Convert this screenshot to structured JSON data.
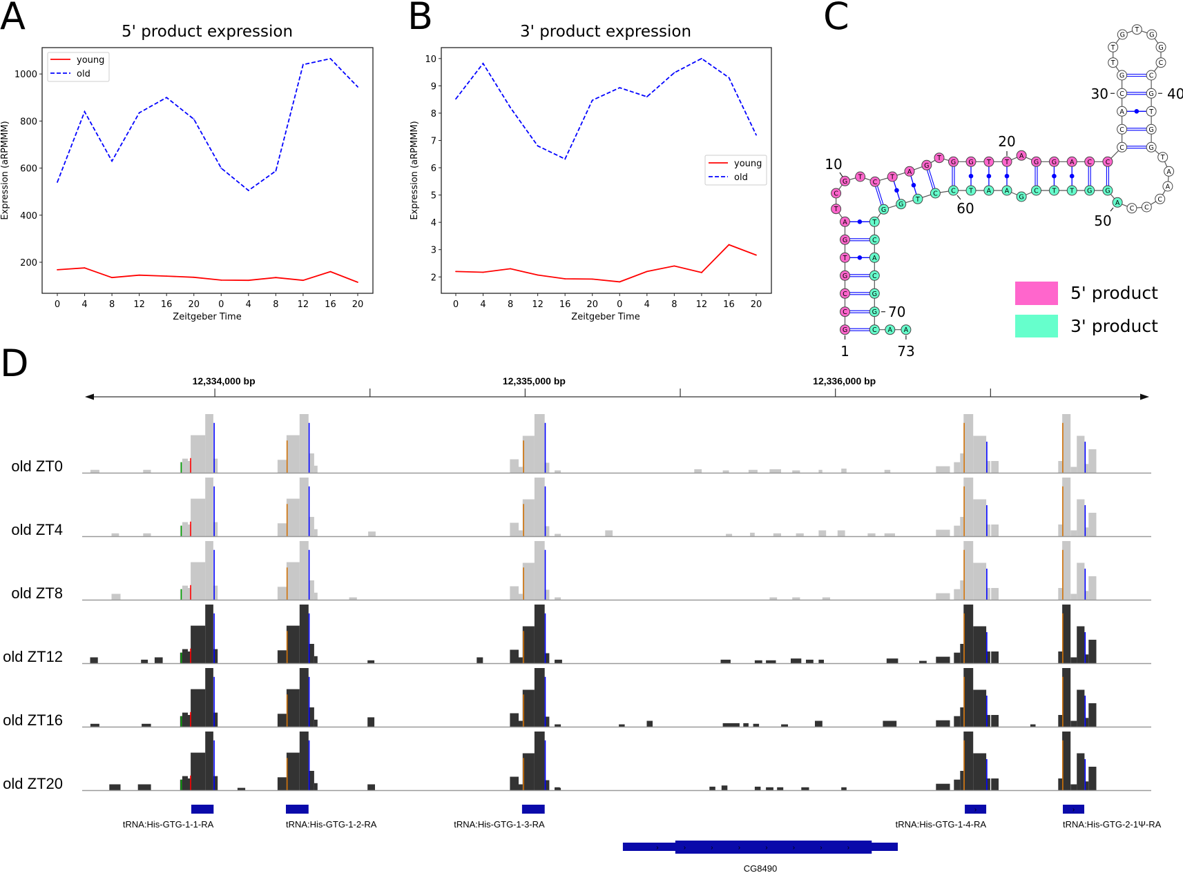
{
  "panels": {
    "a": "A",
    "b": "B",
    "c": "C",
    "d": "D"
  },
  "chart_data": [
    {
      "panel": "A",
      "type": "line",
      "title": "5' product expression",
      "xlabel": "Zeitgeber Time",
      "ylabel": "Expression (aRPMMM)",
      "x_ticks": [
        "0",
        "4",
        "8",
        "12",
        "16",
        "20",
        "0",
        "4",
        "8",
        "12",
        "16",
        "20"
      ],
      "y_ticks": [
        200,
        400,
        600,
        800,
        1000
      ],
      "ylim": [
        68,
        1112
      ],
      "grid": false,
      "legend_position": "upper-left",
      "series": [
        {
          "name": "young",
          "color": "#ff0000",
          "style": "solid",
          "values": [
            168,
            176,
            135,
            145,
            141,
            136,
            124,
            123,
            135,
            123,
            160,
            115
          ]
        },
        {
          "name": "old",
          "color": "#0000ff",
          "style": "dashed",
          "values": [
            540,
            840,
            630,
            835,
            900,
            808,
            600,
            505,
            588,
            1040,
            1065,
            945
          ]
        }
      ]
    },
    {
      "panel": "B",
      "type": "line",
      "title": "3' product expression",
      "xlabel": "Zeitgeber Time",
      "ylabel": "Expression (aRPMMM)",
      "x_ticks": [
        "0",
        "4",
        "8",
        "12",
        "16",
        "20",
        "0",
        "4",
        "8",
        "12",
        "16",
        "20"
      ],
      "y_ticks": [
        2,
        3,
        4,
        5,
        6,
        7,
        8,
        9,
        10
      ],
      "ylim": [
        1.4,
        10.4
      ],
      "grid": false,
      "legend_position": "center-right",
      "series": [
        {
          "name": "young",
          "color": "#ff0000",
          "style": "solid",
          "values": [
            2.2,
            2.17,
            2.3,
            2.07,
            1.93,
            1.92,
            1.82,
            2.2,
            2.4,
            2.16,
            3.18,
            2.8
          ]
        },
        {
          "name": "old",
          "color": "#0000ff",
          "style": "dashed",
          "values": [
            8.52,
            9.82,
            8.2,
            6.8,
            6.32,
            8.47,
            8.93,
            8.6,
            9.48,
            10.0,
            9.3,
            7.2
          ]
        }
      ]
    },
    {
      "panel": "D",
      "type": "area",
      "ruler": {
        "labels": [
          "12,334,000 bp",
          "12,335,000 bp",
          "12,336,000 bp"
        ],
        "label_positions_bp": [
          12334000,
          12335000,
          12336000
        ],
        "tick_positions_bp": [
          12334000,
          12334500,
          12335000,
          12335500,
          12336000,
          12336500
        ]
      },
      "shared_peaks": [
        [
          12333888,
          12333895,
          0.18
        ],
        [
          12333895,
          12333913,
          0.24
        ],
        [
          12333913,
          12333922,
          0.2
        ],
        [
          12333922,
          12333969,
          0.64
        ],
        [
          12333969,
          12333995,
          1.0
        ],
        [
          12333995,
          12334009,
          0.24
        ],
        [
          12334202,
          12334231,
          0.22
        ],
        [
          12334231,
          12334273,
          0.64
        ],
        [
          12334273,
          12334302,
          1.0
        ],
        [
          12334302,
          12334320,
          0.33
        ],
        [
          12334320,
          12334331,
          0.12
        ],
        [
          12334951,
          12334979,
          0.23
        ],
        [
          12334979,
          12334992,
          0.1
        ],
        [
          12334992,
          12335030,
          0.63
        ],
        [
          12335030,
          12335063,
          1.0
        ],
        [
          12335063,
          12335078,
          0.17
        ],
        [
          12335095,
          12335115,
          0.04
        ],
        [
          12336324,
          12336369,
          0.11
        ],
        [
          12336382,
          12336402,
          0.18
        ],
        [
          12336402,
          12336413,
          0.33
        ],
        [
          12336413,
          12336444,
          1.0
        ],
        [
          12336444,
          12336486,
          0.63
        ],
        [
          12336486,
          12336499,
          0.2
        ],
        [
          12336502,
          12336526,
          0.2
        ],
        [
          12336718,
          12336731,
          0.2
        ],
        [
          12336731,
          12336758,
          1.0
        ],
        [
          12336758,
          12336778,
          0.1
        ],
        [
          12336778,
          12336803,
          0.63
        ],
        [
          12336803,
          12336816,
          0.15
        ],
        [
          12336816,
          12336841,
          0.4
        ]
      ],
      "mismatches": [
        [
          12333996,
          0.85,
          "#0000ff"
        ],
        [
          12333920,
          0.25,
          "#ff0000"
        ],
        [
          12333890,
          0.18,
          "#00a000"
        ],
        [
          12334231,
          0.55,
          "#d17105"
        ],
        [
          12334302,
          0.85,
          "#0000ff"
        ],
        [
          12334993,
          0.55,
          "#d17105"
        ],
        [
          12335063,
          0.85,
          "#0000ff"
        ],
        [
          12336413,
          0.85,
          "#d17105"
        ],
        [
          12336486,
          0.53,
          "#0000ff"
        ],
        [
          12336731,
          0.85,
          "#d17105"
        ],
        [
          12336803,
          0.53,
          "#0000ff"
        ]
      ],
      "tracks": [
        {
          "label": "old ZT0",
          "fill": "#c8c8c8",
          "extra": [
            [
              12333599,
              12333628,
              0.05
            ],
            [
              12333769,
              12333794,
              0.05
            ],
            [
              12335545,
              12335569,
              0.06
            ],
            [
              12335637,
              12335657,
              0.04
            ],
            [
              12335720,
              12335749,
              0.05
            ],
            [
              12335788,
              12335825,
              0.06
            ],
            [
              12335861,
              12335886,
              0.04
            ],
            [
              12335946,
              12335958,
              0.05
            ],
            [
              12336019,
              12336036,
              0.07
            ],
            [
              12336158,
              12336177,
              0.05
            ]
          ]
        },
        {
          "label": "old ZT4",
          "fill": "#c8c8c8",
          "extra": [
            [
              12333667,
              12333691,
              0.05
            ],
            [
              12333769,
              12333794,
              0.05
            ],
            [
              12334494,
              12334518,
              0.08
            ],
            [
              12335258,
              12335282,
              0.1
            ],
            [
              12335647,
              12335667,
              0.04
            ],
            [
              12335725,
              12335740,
              0.06
            ],
            [
              12335800,
              12335825,
              0.05
            ],
            [
              12335873,
              12335898,
              0.05
            ],
            [
              12335946,
              12335970,
              0.1
            ],
            [
              12336007,
              12336031,
              0.1
            ],
            [
              12336104,
              12336129,
              0.05
            ],
            [
              12336158,
              12336192,
              0.05
            ]
          ]
        },
        {
          "label": "old ZT8",
          "fill": "#c8c8c8",
          "extra": [
            [
              12333667,
              12333696,
              0.1
            ],
            [
              12334433,
              12334458,
              0.04
            ],
            [
              12335788,
              12335812,
              0.04
            ],
            [
              12335861,
              12335886,
              0.04
            ],
            [
              12335958,
              12335983,
              0.04
            ]
          ]
        },
        {
          "label": "old ZT12",
          "fill": "#333333",
          "extra": [
            [
              12333598,
              12333623,
              0.1
            ],
            [
              12333762,
              12333784,
              0.06
            ],
            [
              12333806,
              12333832,
              0.1
            ],
            [
              12334492,
              12334514,
              0.05
            ],
            [
              12334844,
              12334864,
              0.1
            ],
            [
              12335095,
              12335119,
              0.06
            ],
            [
              12335630,
              12335662,
              0.06
            ],
            [
              12335740,
              12335764,
              0.05
            ],
            [
              12335776,
              12335808,
              0.05
            ],
            [
              12335856,
              12335890,
              0.08
            ],
            [
              12335905,
              12335929,
              0.06
            ],
            [
              12335946,
              12335963,
              0.06
            ],
            [
              12336165,
              12336202,
              0.08
            ],
            [
              12336270,
              12336294,
              0.04
            ]
          ]
        },
        {
          "label": "old ZT16",
          "fill": "#333333",
          "extra": [
            [
              12333599,
              12333628,
              0.05
            ],
            [
              12333764,
              12333794,
              0.05
            ],
            [
              12334492,
              12334514,
              0.16
            ],
            [
              12335302,
              12335321,
              0.04
            ],
            [
              12335392,
              12335411,
              0.1
            ],
            [
              12335637,
              12335691,
              0.06
            ],
            [
              12335703,
              12335720,
              0.06
            ],
            [
              12335735,
              12335754,
              0.05
            ],
            [
              12335825,
              12335847,
              0.04
            ],
            [
              12335934,
              12335958,
              0.1
            ],
            [
              12336153,
              12336197,
              0.1
            ],
            [
              12336628,
              12336645,
              0.04
            ]
          ]
        },
        {
          "label": "old ZT20",
          "fill": "#333333",
          "extra": [
            [
              12333660,
              12333696,
              0.1
            ],
            [
              12333752,
              12333794,
              0.1
            ],
            [
              12334073,
              12334098,
              0.04
            ],
            [
              12334492,
              12334516,
              0.1
            ],
            [
              12335095,
              12335112,
              0.05
            ],
            [
              12335594,
              12335613,
              0.06
            ],
            [
              12335633,
              12335652,
              0.08
            ],
            [
              12335740,
              12335759,
              0.06
            ],
            [
              12335776,
              12335800,
              0.05
            ],
            [
              12335812,
              12335832,
              0.05
            ],
            [
              12335890,
              12335915,
              0.05
            ],
            [
              12336019,
              12336036,
              0.05
            ]
          ]
        }
      ],
      "genes": [
        {
          "name": "tRNA:His-GTG-1-1-RA",
          "start": 12333924,
          "end": 12333996,
          "strand_arrows": false,
          "label_align": "end"
        },
        {
          "name": "tRNA:His-GTG-1-2-RA",
          "start": 12334229,
          "end": 12334302,
          "strand_arrows": false,
          "label_align": "start"
        },
        {
          "name": "tRNA:His-GTG-1-3-RA",
          "start": 12334990,
          "end": 12335063,
          "strand_arrows": false,
          "label_align": "end"
        },
        {
          "name": "tRNA:His-GTG-1-4-RA",
          "start": 12336417,
          "end": 12336486,
          "strand_arrows": true,
          "label_align": "end"
        },
        {
          "name": "tRNA:His-GTG-2-1Ψ-RA",
          "start": 12336733,
          "end": 12336802,
          "strand_arrows": true,
          "label_align": "start"
        }
      ],
      "cg_gene": {
        "name": "CG8490",
        "start": 12335315,
        "end": 12336201,
        "thick_start": 12335484,
        "thick_end": 12336117,
        "strand_arrows": true
      },
      "gene_color": "#0a0aaa"
    }
  ],
  "structure": {
    "panel": "C",
    "sequence": [
      "G",
      "C",
      "C",
      "G",
      "T",
      "G",
      "A",
      "T",
      "C",
      "G",
      "T",
      "C",
      "T",
      "A",
      "G",
      "T",
      "G",
      "G",
      "T",
      "T",
      "A",
      "G",
      "G",
      "A",
      "C",
      "C",
      "C",
      "C",
      "A",
      "C",
      "G",
      "T",
      "T",
      "G",
      "T",
      "G",
      "G",
      "C",
      "C",
      "G",
      "T",
      "G",
      "G",
      "T",
      "A",
      "A",
      "C",
      "C",
      "C",
      "A",
      "G",
      "G",
      "T",
      "T",
      "C",
      "G",
      "A",
      "A",
      "T",
      "C",
      "C",
      "T",
      "G",
      "G",
      "T",
      "C",
      "A",
      "C",
      "G",
      "G",
      "C",
      "A",
      "A"
    ],
    "pairs": [
      [
        1,
        71
      ],
      [
        2,
        70
      ],
      [
        3,
        69
      ],
      [
        4,
        68
      ],
      [
        5,
        67
      ],
      [
        6,
        66
      ],
      [
        7,
        65
      ],
      [
        12,
        64
      ],
      [
        13,
        63
      ],
      [
        14,
        62
      ],
      [
        15,
        61
      ],
      [
        17,
        60
      ],
      [
        18,
        59
      ],
      [
        19,
        58
      ],
      [
        20,
        57
      ],
      [
        22,
        55
      ],
      [
        23,
        54
      ],
      [
        24,
        53
      ],
      [
        25,
        52
      ],
      [
        26,
        51
      ],
      [
        27,
        43
      ],
      [
        28,
        42
      ],
      [
        29,
        41
      ],
      [
        30,
        40
      ],
      [
        31,
        39
      ]
    ],
    "five_prime_range": [
      1,
      26
    ],
    "three_prime_range": [
      50,
      73
    ],
    "position_labels": [
      {
        "pos": 1,
        "text": "1"
      },
      {
        "pos": 10,
        "text": "10"
      },
      {
        "pos": 20,
        "text": "20"
      },
      {
        "pos": 30,
        "text": "30"
      },
      {
        "pos": 40,
        "text": "40"
      },
      {
        "pos": 50,
        "text": "50"
      },
      {
        "pos": 60,
        "text": "60"
      },
      {
        "pos": 70,
        "text": "70"
      },
      {
        "pos": 73,
        "text": "73"
      }
    ],
    "legend": [
      {
        "label": "5' product",
        "color": "#ff66cc"
      },
      {
        "label": "3' product",
        "color": "#66ffcc"
      }
    ],
    "pair_color": "#0000ff"
  }
}
